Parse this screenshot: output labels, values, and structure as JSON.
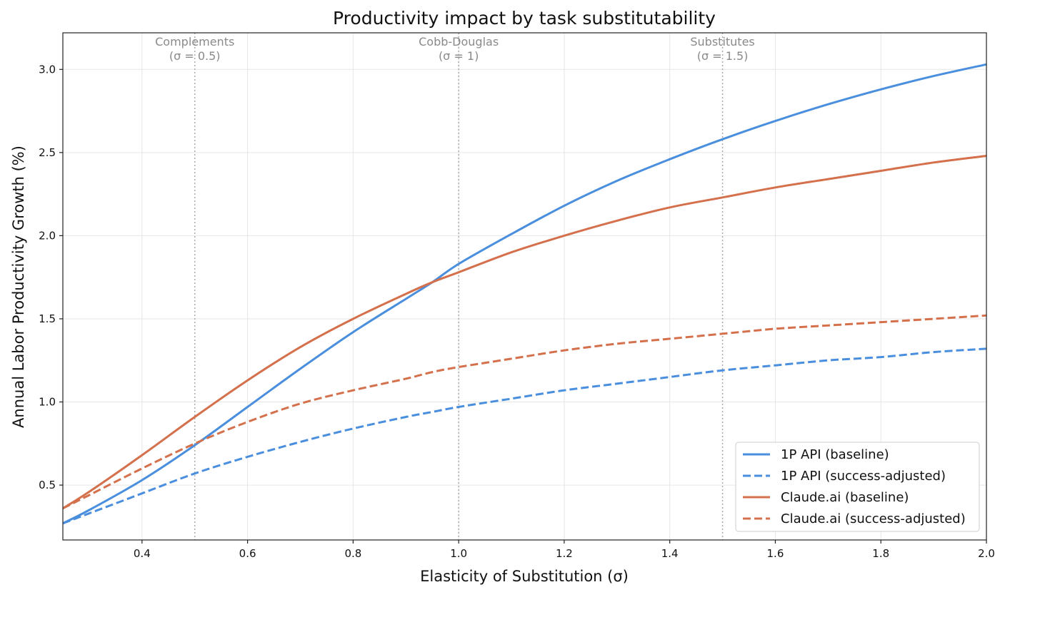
{
  "chart_data": {
    "type": "line",
    "title": "Productivity impact by task substitutability",
    "xlabel": "Elasticity of Substitution (σ)",
    "ylabel": "Annual Labor Productivity Growth (%)",
    "xlim": [
      0.25,
      2.0
    ],
    "ylim": [
      0.17,
      3.22
    ],
    "xticks": [
      "0.4",
      "0.6",
      "0.8",
      "1.0",
      "1.2",
      "1.4",
      "1.6",
      "1.8",
      "2.0"
    ],
    "yticks": [
      "0.5",
      "1.0",
      "1.5",
      "2.0",
      "2.5",
      "3.0"
    ],
    "grid": true,
    "legend_position": "lower-right",
    "reference_lines": [
      {
        "x": 0.5,
        "label_line1": "Complements",
        "label_line2": "(σ = 0.5)"
      },
      {
        "x": 1.0,
        "label_line1": "Cobb-Douglas",
        "label_line2": "(σ = 1)"
      },
      {
        "x": 1.5,
        "label_line1": "Substitutes",
        "label_line2": "(σ = 1.5)"
      }
    ],
    "x": [
      0.25,
      0.3,
      0.4,
      0.5,
      0.6,
      0.7,
      0.8,
      0.9,
      0.95,
      1.0,
      1.1,
      1.2,
      1.3,
      1.4,
      1.5,
      1.6,
      1.7,
      1.8,
      1.9,
      2.0
    ],
    "series": [
      {
        "name": "1P API (baseline)",
        "color": "#4a8ede",
        "dash": "solid",
        "values": [
          0.27,
          0.35,
          0.53,
          0.74,
          0.97,
          1.2,
          1.42,
          1.62,
          1.72,
          1.83,
          2.01,
          2.18,
          2.33,
          2.46,
          2.58,
          2.69,
          2.79,
          2.88,
          2.96,
          3.03
        ]
      },
      {
        "name": "1P API (success-adjusted)",
        "color": "#4a8ede",
        "dash": "dashed",
        "values": [
          0.27,
          0.33,
          0.45,
          0.57,
          0.67,
          0.76,
          0.84,
          0.91,
          0.94,
          0.97,
          1.02,
          1.07,
          1.11,
          1.15,
          1.19,
          1.22,
          1.25,
          1.27,
          1.3,
          1.32
        ]
      },
      {
        "name": "Claude.ai (baseline)",
        "color": "#d4704c",
        "dash": "solid",
        "values": [
          0.36,
          0.46,
          0.68,
          0.91,
          1.13,
          1.33,
          1.5,
          1.65,
          1.72,
          1.78,
          1.9,
          2.0,
          2.09,
          2.17,
          2.23,
          2.29,
          2.34,
          2.39,
          2.44,
          2.48
        ]
      },
      {
        "name": "Claude.ai (success-adjusted)",
        "color": "#d4704c",
        "dash": "dashed",
        "values": [
          0.36,
          0.44,
          0.6,
          0.75,
          0.88,
          0.99,
          1.07,
          1.14,
          1.18,
          1.21,
          1.26,
          1.31,
          1.35,
          1.38,
          1.41,
          1.44,
          1.46,
          1.48,
          1.5,
          1.52
        ]
      }
    ]
  }
}
